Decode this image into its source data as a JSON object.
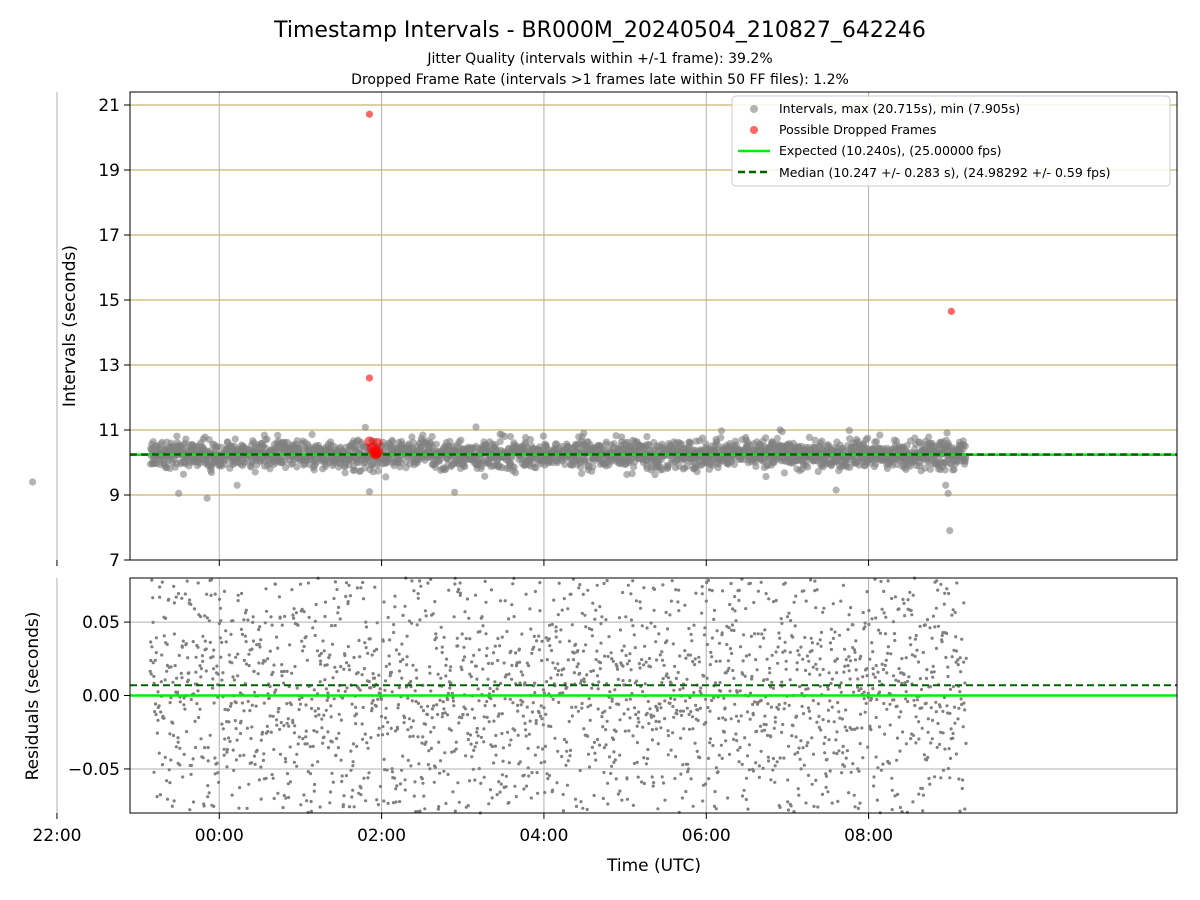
{
  "figure": {
    "title": "Timestamp Intervals - BR000M_20240504_210827_642246",
    "subtitle_1": "Jitter Quality (intervals within +/-1 frame): 39.2%",
    "subtitle_2": "Dropped Frame Rate (intervals >1 frames late within 50 FF files): 1.2%"
  },
  "colors": {
    "intervals": "#808080",
    "dropped": "#ff0000",
    "expected": "#00ee00",
    "median": "#006400",
    "gridline_gold": "#c8b46e",
    "grid": "#b0b0b0"
  },
  "chart_data": [
    {
      "type": "scatter",
      "panel": "intervals",
      "xlabel": "",
      "ylabel": "Intervals (seconds)",
      "xlim": [
        -1.1,
        11.8
      ],
      "ylim": [
        7,
        21.4
      ],
      "x_unit": "hours relative to 00:00 UTC (2024-05-04 21:00 = -3)",
      "xticks": [
        -2,
        0,
        2,
        4,
        6,
        8
      ],
      "yticks": [
        7,
        9,
        11,
        13,
        15,
        17,
        19,
        21
      ],
      "ytick_labels": [
        "7",
        "9",
        "11",
        "13",
        "15",
        "17",
        "19",
        "21"
      ],
      "grid": true,
      "legend_position": "upper right",
      "legend": [
        "Intervals, max (20.715s), min (7.905s)",
        "Possible Dropped Frames",
        "Expected (10.240s), (25.00000 fps)",
        "Median (10.247 +/- 0.283 s), (24.98292 +/- 0.59 fps)"
      ],
      "series": [
        {
          "name": "Intervals, max (20.715s), min (7.905s)",
          "kind": "points",
          "x_range": [
            -0.85,
            9.2
          ],
          "center": 10.247,
          "spread_sd": 0.283,
          "outliers": [
            {
              "x": 9.0,
              "y": 7.905
            },
            {
              "x": 8.98,
              "y": 9.05
            },
            {
              "x": 8.95,
              "y": 9.3
            },
            {
              "x": 0.22,
              "y": 9.3
            },
            {
              "x": -0.15,
              "y": 8.9
            },
            {
              "x": -0.5,
              "y": 9.05
            },
            {
              "x": 1.85,
              "y": 9.1
            },
            {
              "x": 7.6,
              "y": 9.15
            },
            {
              "x": -2.3,
              "y": 9.4
            }
          ]
        },
        {
          "name": "Possible Dropped Frames",
          "kind": "points",
          "points": [
            {
              "x": 1.85,
              "y": 20.715
            },
            {
              "x": 1.85,
              "y": 12.6
            },
            {
              "x": 9.02,
              "y": 14.65
            },
            {
              "x": 1.85,
              "y": 10.65
            },
            {
              "x": 1.95,
              "y": 10.6
            },
            {
              "x": 1.88,
              "y": 10.45
            },
            {
              "x": 1.9,
              "y": 10.3
            },
            {
              "x": 1.92,
              "y": 10.35
            },
            {
              "x": 1.94,
              "y": 10.28
            },
            {
              "x": 1.96,
              "y": 10.32
            },
            {
              "x": 1.93,
              "y": 10.25
            }
          ]
        },
        {
          "name": "Expected (10.240s), (25.00000 fps)",
          "kind": "hline",
          "y": 10.24
        },
        {
          "name": "Median (10.247 +/- 0.283 s), (24.98292 +/- 0.59 fps)",
          "kind": "hline",
          "y": 10.247
        }
      ]
    },
    {
      "type": "scatter",
      "panel": "residuals",
      "xlabel": "Time (UTC)",
      "ylabel": "Residuals (seconds)",
      "xlim": [
        -1.1,
        11.8
      ],
      "ylim": [
        -0.08,
        0.08
      ],
      "x_unit": "hours relative to 00:00 UTC",
      "xticks": [
        -2,
        0,
        2,
        4,
        6,
        8
      ],
      "xtick_labels": [
        "22:00",
        "00:00",
        "02:00",
        "04:00",
        "06:00",
        "08:00"
      ],
      "yticks": [
        0.05,
        0.0,
        -0.05
      ],
      "ytick_labels": [
        "0.05",
        "0.00",
        "−0.05"
      ],
      "grid": true,
      "series": [
        {
          "name": "",
          "kind": "points",
          "x_range": [
            -0.85,
            9.2
          ],
          "y_range": [
            -0.08,
            0.08
          ]
        },
        {
          "name": "",
          "kind": "hline",
          "y": 0.0
        },
        {
          "name": "",
          "kind": "hline",
          "y": 0.007
        }
      ]
    }
  ]
}
